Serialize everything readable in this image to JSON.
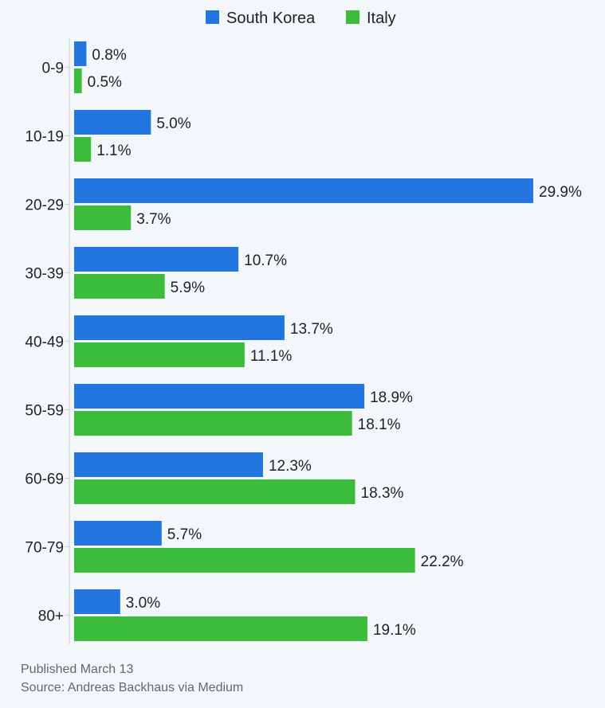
{
  "chart_data": {
    "type": "bar",
    "orientation": "horizontal",
    "categories": [
      "0-9",
      "10-19",
      "20-29",
      "30-39",
      "40-49",
      "50-59",
      "60-69",
      "70-79",
      "80+"
    ],
    "series": [
      {
        "name": "South Korea",
        "color": "#2376e0",
        "values": [
          0.8,
          5.0,
          29.9,
          10.7,
          13.7,
          18.9,
          12.3,
          5.7,
          3.0
        ],
        "labels": [
          "0.8%",
          "5.0%",
          "29.9%",
          "10.7%",
          "13.7%",
          "18.9%",
          "12.3%",
          "5.7%",
          "3.0%"
        ]
      },
      {
        "name": "Italy",
        "color": "#3bbd3b",
        "values": [
          0.5,
          1.1,
          3.7,
          5.9,
          11.1,
          18.1,
          18.3,
          22.2,
          19.1
        ],
        "labels": [
          "0.5%",
          "1.1%",
          "3.7%",
          "5.9%",
          "11.1%",
          "18.1%",
          "18.3%",
          "22.2%",
          "19.1%"
        ]
      }
    ],
    "xlim": [
      0,
      30
    ],
    "grid": false,
    "legend": "top-center"
  },
  "footer": {
    "published": "Published March 13",
    "source": "Source: Andreas Backhaus via Medium"
  }
}
